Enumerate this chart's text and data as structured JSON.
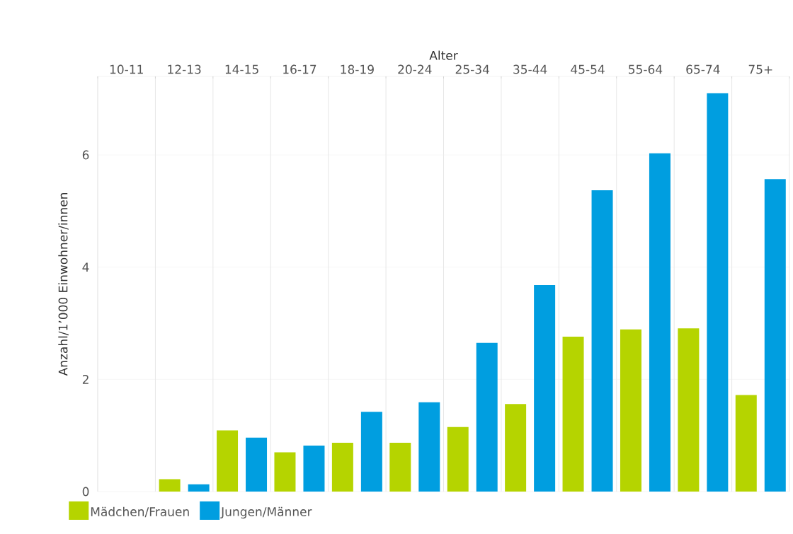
{
  "chart_data": {
    "type": "bar",
    "xlabel": "Alter",
    "ylabel": "Anzahl/1’000 Einwohner/innen",
    "categories": [
      "10-11",
      "12-13",
      "14-15",
      "16-17",
      "18-19",
      "20-24",
      "25-34",
      "35-44",
      "45-54",
      "55-64",
      "65-74",
      "75+"
    ],
    "series": [
      {
        "name": "Mädchen/Frauen",
        "color": "#b5d400",
        "values": [
          null,
          0.22,
          1.09,
          0.7,
          0.87,
          0.87,
          1.15,
          1.56,
          2.76,
          2.89,
          2.91,
          1.72
        ]
      },
      {
        "name": "Jungen/Männer",
        "color": "#009ee0",
        "values": [
          null,
          0.13,
          0.96,
          0.82,
          1.42,
          1.59,
          2.65,
          3.68,
          5.37,
          6.03,
          7.1,
          5.57
        ]
      }
    ],
    "ylim": [
      0,
      7.4
    ],
    "yticks": [
      0,
      2,
      4,
      6
    ],
    "grid": "y",
    "legend": "bottom left"
  }
}
